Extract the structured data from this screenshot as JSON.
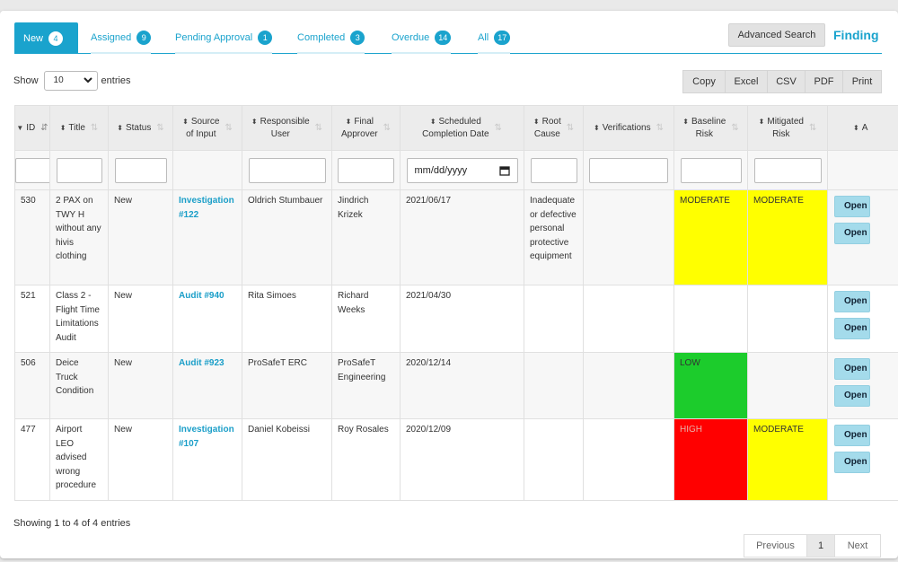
{
  "tabs": [
    {
      "label": "New",
      "count": "4",
      "active": true
    },
    {
      "label": "Assigned",
      "count": "9"
    },
    {
      "label": "Pending Approval",
      "count": "1"
    },
    {
      "label": "Completed",
      "count": "3"
    },
    {
      "label": "Overdue",
      "count": "14"
    },
    {
      "label": "All",
      "count": "17"
    }
  ],
  "toolbar": {
    "advanced_search": "Advanced Search",
    "title": "Finding"
  },
  "length_menu": {
    "show": "Show",
    "value": "10",
    "entries": "entries"
  },
  "export_buttons": [
    "Copy",
    "Excel",
    "CSV",
    "PDF",
    "Print"
  ],
  "columns": [
    {
      "label": "ID",
      "line2": ""
    },
    {
      "label": "Title",
      "line2": ""
    },
    {
      "label": "Status",
      "line2": ""
    },
    {
      "label": "Source",
      "line2": "of Input"
    },
    {
      "label": "Responsible",
      "line2": "User"
    },
    {
      "label": "Final",
      "line2": "Approver"
    },
    {
      "label": "Scheduled",
      "line2": "Completion Date"
    },
    {
      "label": "Root",
      "line2": "Cause"
    },
    {
      "label": "Verifications",
      "line2": ""
    },
    {
      "label": "Baseline",
      "line2": "Risk"
    },
    {
      "label": "Mitigated",
      "line2": "Risk"
    },
    {
      "label": "A",
      "line2": ""
    }
  ],
  "date_filter_placeholder": "mm/dd/yyyy",
  "rows": [
    {
      "id": "530",
      "title": "2 PAX on TWY H without any hivis clothing",
      "status": "New",
      "source": "Investigation #122",
      "responsible": "Oldrich Stumbauer",
      "approver": "Jindrich Krizek",
      "date": "2021/06/17",
      "root_cause": "Inadequate or defective personal protective equipment",
      "verifications": "",
      "baseline": "MODERATE",
      "mitigated": "MODERATE"
    },
    {
      "id": "521",
      "title": "Class 2 - Flight Time Limitations Audit",
      "status": "New",
      "source": "Audit #940",
      "responsible": "Rita Simoes",
      "approver": "Richard Weeks",
      "date": "2021/04/30",
      "root_cause": "",
      "verifications": "",
      "baseline": "",
      "mitigated": ""
    },
    {
      "id": "506",
      "title": "Deice Truck Condition",
      "status": "New",
      "source": "Audit #923",
      "responsible": "ProSafeT ERC",
      "approver": "ProSafeT Engineering",
      "date": "2020/12/14",
      "root_cause": "",
      "verifications": "",
      "baseline": "LOW",
      "mitigated": ""
    },
    {
      "id": "477",
      "title": "Airport LEO advised wrong procedure",
      "status": "New",
      "source": "Investigation #107",
      "responsible": "Daniel Kobeissi",
      "approver": "Roy Rosales",
      "date": "2020/12/09",
      "root_cause": "",
      "verifications": "",
      "baseline": "HIGH",
      "mitigated": "MODERATE"
    }
  ],
  "row_action_label": "Open",
  "info": "Showing 1 to 4 of 4 entries",
  "pagination": {
    "previous": "Previous",
    "page": "1",
    "next": "Next"
  },
  "colors": {
    "accent": "#1aa3cd",
    "moderate": "#ffff00",
    "low": "#1ccc2c",
    "high": "#ff0000"
  }
}
